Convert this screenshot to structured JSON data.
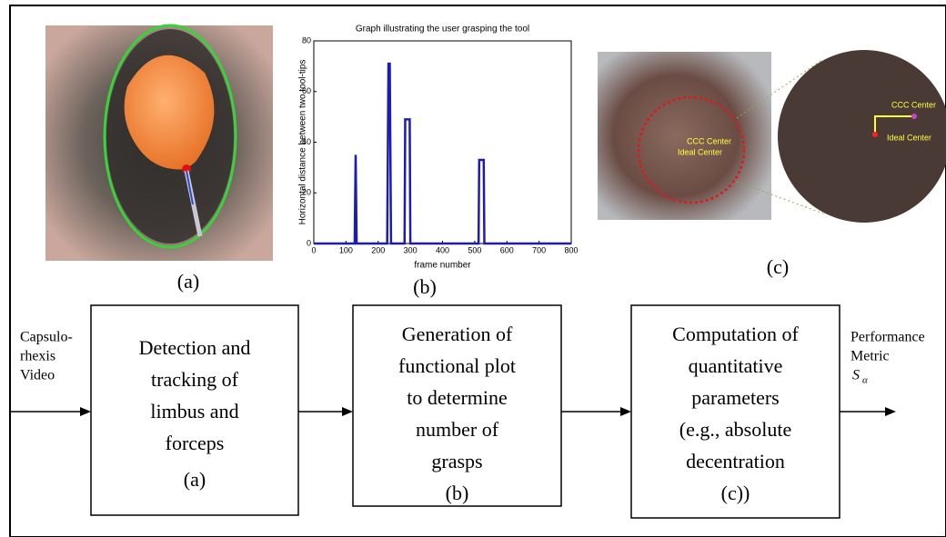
{
  "chart_data": {
    "type": "line",
    "title": "Graph illustrating the user grasping the tool",
    "x_label": "frame number",
    "y_label": "Horizontal distance between two tool-tips",
    "x": [
      0,
      127,
      130,
      133,
      228,
      232,
      236,
      240,
      282,
      284,
      298,
      300,
      512,
      514,
      528,
      530,
      800
    ],
    "series": [
      {
        "color": "#1c1cb4",
        "values": [
          0,
          0,
          35,
          0,
          0,
          71,
          71,
          0,
          0,
          49,
          49,
          0,
          0,
          33,
          33,
          0,
          0
        ]
      }
    ],
    "xlim": [
      0,
      800
    ],
    "xticks": [
      0,
      100,
      200,
      300,
      400,
      500,
      600,
      700,
      800
    ],
    "ylim": [
      0,
      80
    ],
    "yticks": [
      0,
      20,
      40,
      60,
      80
    ]
  },
  "panels": {
    "a": {
      "label": "(a)"
    },
    "b": {
      "label": "(b)"
    },
    "c": {
      "label": "(c)",
      "annotations": [
        "CCC Center",
        "Ideal Center",
        "CCC Center",
        "Ideal Center"
      ]
    }
  },
  "flow": {
    "input": [
      "Capsulo-",
      "rhexis",
      "Video"
    ],
    "boxes": [
      {
        "lines": [
          "Detection and",
          "tracking of",
          "limbus and",
          "forceps"
        ],
        "label": "(a)"
      },
      {
        "lines": [
          "Generation of",
          "functional plot",
          "to determine",
          "number of",
          "grasps"
        ],
        "label": "(b)"
      },
      {
        "lines": [
          "Computation of",
          "quantitative",
          "parameters",
          "(e.g., absolute",
          "decentration"
        ],
        "label": "(c))"
      }
    ],
    "output": [
      "Performance",
      "Metric"
    ],
    "output_symbol": "S",
    "output_subscript": "α"
  }
}
